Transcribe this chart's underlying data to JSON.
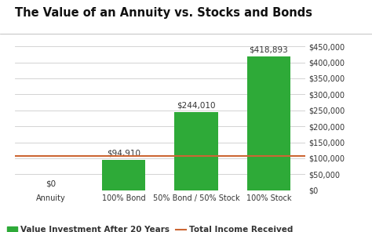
{
  "title": "The Value of an Annuity vs. Stocks and Bonds",
  "categories": [
    "Annuity",
    "100% Bond",
    "50% Bond / 50% Stock",
    "100% Stock"
  ],
  "values": [
    0,
    94910,
    244010,
    418893
  ],
  "labels": [
    "$0",
    "$94,910",
    "$244,010",
    "$418,893"
  ],
  "bar_color": "#2eaa38",
  "line_value": 108000,
  "line_color": "#cc6633",
  "ylim": [
    0,
    450000
  ],
  "yticks": [
    0,
    50000,
    100000,
    150000,
    200000,
    250000,
    300000,
    350000,
    400000,
    450000
  ],
  "ytick_labels": [
    "$0",
    "$50,000",
    "$100,000",
    "$150,000",
    "$200,000",
    "$250,000",
    "$300,000",
    "$350,000",
    "$400,000",
    "$450,000"
  ],
  "legend_bar_label": "Value Investment After 20 Years",
  "legend_line_label": "Total Income Received",
  "background_color": "#ffffff",
  "title_fontsize": 10.5,
  "label_fontsize": 7.5,
  "tick_fontsize": 7,
  "legend_fontsize": 7.5,
  "title_color": "#111111",
  "tick_color": "#333333",
  "grid_color": "#cccccc",
  "title_separator_color": "#aaaaaa"
}
